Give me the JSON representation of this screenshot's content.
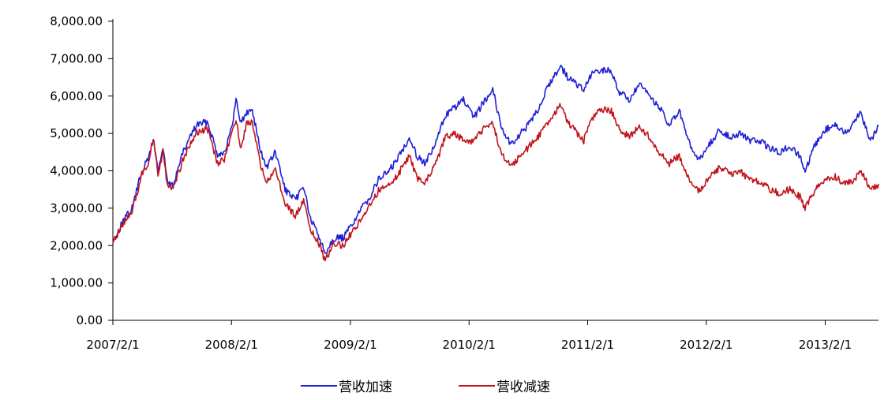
{
  "chart_data": {
    "type": "line",
    "title": "",
    "xlabel": "",
    "ylabel": "",
    "ylim": [
      0,
      8000
    ],
    "yticks": [
      "0.00",
      "1,000.00",
      "2,000.00",
      "3,000.00",
      "4,000.00",
      "5,000.00",
      "6,000.00",
      "7,000.00",
      "8,000.00"
    ],
    "xlim": [
      "2007/2/1",
      "2013/7/15"
    ],
    "xticks": [
      "2007/2/1",
      "2008/2/1",
      "2009/2/1",
      "2010/2/1",
      "2011/2/1",
      "2012/2/1",
      "2013/2/1"
    ],
    "grid": false,
    "legend_position": "bottom",
    "series": [
      {
        "name": "营收加速",
        "color": "#1f1fd6",
        "points": [
          [
            "2007/2/1",
            2100
          ],
          [
            "2007/3/1",
            2600
          ],
          [
            "2007/4/1",
            3000
          ],
          [
            "2007/5/1",
            4000
          ],
          [
            "2007/5/20",
            4300
          ],
          [
            "2007/6/5",
            4850
          ],
          [
            "2007/6/20",
            4000
          ],
          [
            "2007/7/5",
            4600
          ],
          [
            "2007/7/20",
            3650
          ],
          [
            "2007/8/5",
            3600
          ],
          [
            "2007/9/1",
            4400
          ],
          [
            "2007/10/1",
            5000
          ],
          [
            "2007/10/20",
            5250
          ],
          [
            "2007/11/20",
            5300
          ],
          [
            "2007/12/20",
            4450
          ],
          [
            "2008/1/10",
            4500
          ],
          [
            "2008/2/1",
            5100
          ],
          [
            "2008/2/15",
            5900
          ],
          [
            "2008/3/1",
            5300
          ],
          [
            "2008/3/20",
            5550
          ],
          [
            "2008/4/5",
            5650
          ],
          [
            "2008/5/1",
            4500
          ],
          [
            "2008/5/20",
            4100
          ],
          [
            "2008/6/15",
            4500
          ],
          [
            "2008/7/15",
            3500
          ],
          [
            "2008/8/15",
            3200
          ],
          [
            "2008/9/10",
            3600
          ],
          [
            "2008/10/1",
            2700
          ],
          [
            "2008/10/25",
            2300
          ],
          [
            "2008/11/15",
            1800
          ],
          [
            "2008/12/10",
            2200
          ],
          [
            "2009/1/10",
            2200
          ],
          [
            "2009/2/1",
            2500
          ],
          [
            "2009/3/1",
            2900
          ],
          [
            "2009/4/1",
            3300
          ],
          [
            "2009/5/1",
            3800
          ],
          [
            "2009/6/1",
            4000
          ],
          [
            "2009/7/1",
            4400
          ],
          [
            "2009/8/1",
            4900
          ],
          [
            "2009/8/25",
            4400
          ],
          [
            "2009/9/20",
            4200
          ],
          [
            "2009/10/20",
            4700
          ],
          [
            "2009/11/20",
            5500
          ],
          [
            "2009/12/20",
            5700
          ],
          [
            "2010/1/15",
            5900
          ],
          [
            "2010/2/15",
            5400
          ],
          [
            "2010/3/15",
            5800
          ],
          [
            "2010/4/15",
            6200
          ],
          [
            "2010/5/10",
            5200
          ],
          [
            "2010/6/10",
            4700
          ],
          [
            "2010/7/10",
            5000
          ],
          [
            "2010/8/10",
            5300
          ],
          [
            "2010/9/10",
            5800
          ],
          [
            "2010/10/10",
            6400
          ],
          [
            "2010/11/10",
            6800
          ],
          [
            "2010/12/1",
            6500
          ],
          [
            "2011/1/1",
            6300
          ],
          [
            "2011/1/20",
            6150
          ],
          [
            "2011/2/15",
            6600
          ],
          [
            "2011/3/15",
            6700
          ],
          [
            "2011/4/15",
            6650
          ],
          [
            "2011/5/10",
            6100
          ],
          [
            "2011/6/10",
            5900
          ],
          [
            "2011/7/10",
            6300
          ],
          [
            "2011/8/10",
            6000
          ],
          [
            "2011/9/10",
            5700
          ],
          [
            "2011/10/10",
            5200
          ],
          [
            "2011/11/10",
            5600
          ],
          [
            "2011/12/15",
            4600
          ],
          [
            "2012/1/10",
            4300
          ],
          [
            "2012/2/10",
            4700
          ],
          [
            "2012/3/15",
            5100
          ],
          [
            "2012/4/15",
            4900
          ],
          [
            "2012/5/15",
            5000
          ],
          [
            "2012/6/15",
            4800
          ],
          [
            "2012/7/15",
            4800
          ],
          [
            "2012/8/15",
            4600
          ],
          [
            "2012/9/15",
            4500
          ],
          [
            "2012/10/15",
            4650
          ],
          [
            "2012/11/15",
            4400
          ],
          [
            "2012/12/1",
            3950
          ],
          [
            "2013/1/1",
            4700
          ],
          [
            "2013/2/1",
            5100
          ],
          [
            "2013/3/1",
            5250
          ],
          [
            "2013/4/1",
            5000
          ],
          [
            "2013/5/1",
            5300
          ],
          [
            "2013/5/20",
            5600
          ],
          [
            "2013/6/20",
            4800
          ],
          [
            "2013/7/15",
            5200
          ]
        ]
      },
      {
        "name": "营收减速",
        "color": "#c0141c",
        "points": [
          [
            "2007/2/1",
            2050
          ],
          [
            "2007/3/1",
            2550
          ],
          [
            "2007/4/1",
            2900
          ],
          [
            "2007/5/1",
            3900
          ],
          [
            "2007/5/20",
            4200
          ],
          [
            "2007/6/5",
            4900
          ],
          [
            "2007/6/20",
            3900
          ],
          [
            "2007/7/5",
            4500
          ],
          [
            "2007/7/20",
            3550
          ],
          [
            "2007/8/5",
            3500
          ],
          [
            "2007/9/1",
            4200
          ],
          [
            "2007/10/1",
            4800
          ],
          [
            "2007/10/20",
            5050
          ],
          [
            "2007/11/20",
            5100
          ],
          [
            "2007/12/20",
            4200
          ],
          [
            "2008/1/10",
            4300
          ],
          [
            "2008/2/1",
            5000
          ],
          [
            "2008/2/15",
            5400
          ],
          [
            "2008/3/1",
            4600
          ],
          [
            "2008/3/20",
            5300
          ],
          [
            "2008/4/5",
            5300
          ],
          [
            "2008/5/1",
            4100
          ],
          [
            "2008/5/20",
            3700
          ],
          [
            "2008/6/15",
            4100
          ],
          [
            "2008/7/15",
            3100
          ],
          [
            "2008/8/15",
            2800
          ],
          [
            "2008/9/10",
            3200
          ],
          [
            "2008/10/1",
            2400
          ],
          [
            "2008/10/25",
            2100
          ],
          [
            "2008/11/15",
            1600
          ],
          [
            "2008/12/10",
            2050
          ],
          [
            "2009/1/10",
            2000
          ],
          [
            "2009/2/1",
            2300
          ],
          [
            "2009/3/1",
            2650
          ],
          [
            "2009/4/1",
            3100
          ],
          [
            "2009/5/1",
            3500
          ],
          [
            "2009/6/1",
            3600
          ],
          [
            "2009/7/1",
            3950
          ],
          [
            "2009/8/1",
            4400
          ],
          [
            "2009/8/25",
            3800
          ],
          [
            "2009/9/20",
            3700
          ],
          [
            "2009/10/20",
            4150
          ],
          [
            "2009/11/20",
            4900
          ],
          [
            "2009/12/20",
            5000
          ],
          [
            "2010/1/15",
            4800
          ],
          [
            "2010/2/15",
            4800
          ],
          [
            "2010/3/15",
            5100
          ],
          [
            "2010/4/15",
            5300
          ],
          [
            "2010/5/10",
            4500
          ],
          [
            "2010/6/10",
            4100
          ],
          [
            "2010/7/10",
            4400
          ],
          [
            "2010/8/10",
            4700
          ],
          [
            "2010/9/10",
            5000
          ],
          [
            "2010/10/10",
            5400
          ],
          [
            "2010/11/10",
            5750
          ],
          [
            "2010/12/1",
            5300
          ],
          [
            "2011/1/1",
            5000
          ],
          [
            "2011/1/20",
            4800
          ],
          [
            "2011/2/15",
            5400
          ],
          [
            "2011/3/15",
            5650
          ],
          [
            "2011/4/15",
            5600
          ],
          [
            "2011/5/10",
            5100
          ],
          [
            "2011/6/10",
            4900
          ],
          [
            "2011/7/10",
            5200
          ],
          [
            "2011/8/10",
            4900
          ],
          [
            "2011/9/10",
            4500
          ],
          [
            "2011/10/10",
            4200
          ],
          [
            "2011/11/10",
            4400
          ],
          [
            "2011/12/15",
            3700
          ],
          [
            "2012/1/10",
            3450
          ],
          [
            "2012/2/10",
            3800
          ],
          [
            "2012/3/15",
            4100
          ],
          [
            "2012/4/15",
            3900
          ],
          [
            "2012/5/15",
            4000
          ],
          [
            "2012/6/15",
            3750
          ],
          [
            "2012/7/15",
            3700
          ],
          [
            "2012/8/15",
            3500
          ],
          [
            "2012/9/15",
            3400
          ],
          [
            "2012/10/15",
            3500
          ],
          [
            "2012/11/15",
            3300
          ],
          [
            "2012/12/1",
            3000
          ],
          [
            "2013/1/1",
            3500
          ],
          [
            "2013/2/1",
            3800
          ],
          [
            "2013/3/1",
            3850
          ],
          [
            "2013/4/1",
            3650
          ],
          [
            "2013/5/1",
            3750
          ],
          [
            "2013/5/20",
            4050
          ],
          [
            "2013/6/20",
            3500
          ],
          [
            "2013/7/15",
            3650
          ]
        ]
      }
    ]
  }
}
